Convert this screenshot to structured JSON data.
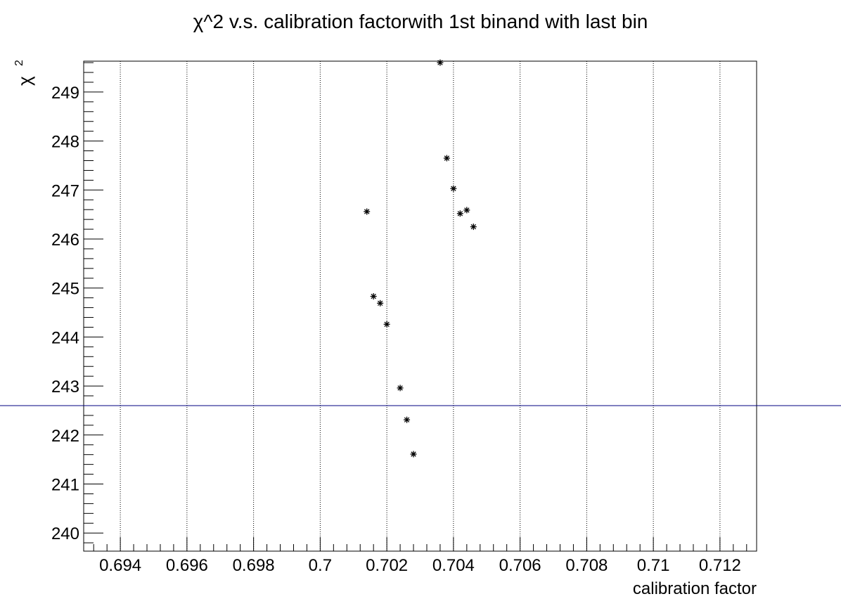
{
  "chart_data": {
    "type": "scatter",
    "title": "χ^2 v.s. calibration factorwith 1st binand with last bin",
    "xlabel": "calibration factor",
    "ylabel": "χ",
    "ylabel_superscript": "2",
    "xlim": [
      0.6929,
      0.7131
    ],
    "ylim": [
      239.63,
      249.63
    ],
    "x_ticks": [
      0.694,
      0.696,
      0.698,
      0.7,
      0.702,
      0.704,
      0.706,
      0.708,
      0.71,
      0.712
    ],
    "x_tick_labels": [
      "0.694",
      "0.696",
      "0.698",
      "0.7",
      "0.702",
      "0.704",
      "0.706",
      "0.708",
      "0.71",
      "0.712"
    ],
    "y_ticks": [
      240,
      241,
      242,
      243,
      244,
      245,
      246,
      247,
      248,
      249
    ],
    "y_tick_labels": [
      "240",
      "241",
      "242",
      "243",
      "244",
      "245",
      "246",
      "247",
      "248",
      "249"
    ],
    "x_grid": true,
    "y_grid": false,
    "marker": "*",
    "points": [
      {
        "x": 0.7014,
        "y": 246.56
      },
      {
        "x": 0.7016,
        "y": 244.83
      },
      {
        "x": 0.7018,
        "y": 244.69
      },
      {
        "x": 0.702,
        "y": 244.26
      },
      {
        "x": 0.7024,
        "y": 242.96
      },
      {
        "x": 0.7026,
        "y": 242.31
      },
      {
        "x": 0.7028,
        "y": 241.61
      },
      {
        "x": 0.7036,
        "y": 249.6
      },
      {
        "x": 0.7038,
        "y": 247.65
      },
      {
        "x": 0.704,
        "y": 247.03
      },
      {
        "x": 0.7042,
        "y": 246.52
      },
      {
        "x": 0.7044,
        "y": 246.59
      },
      {
        "x": 0.7046,
        "y": 246.25
      }
    ],
    "reference_line": {
      "y": 242.6,
      "color": "#000080"
    }
  }
}
